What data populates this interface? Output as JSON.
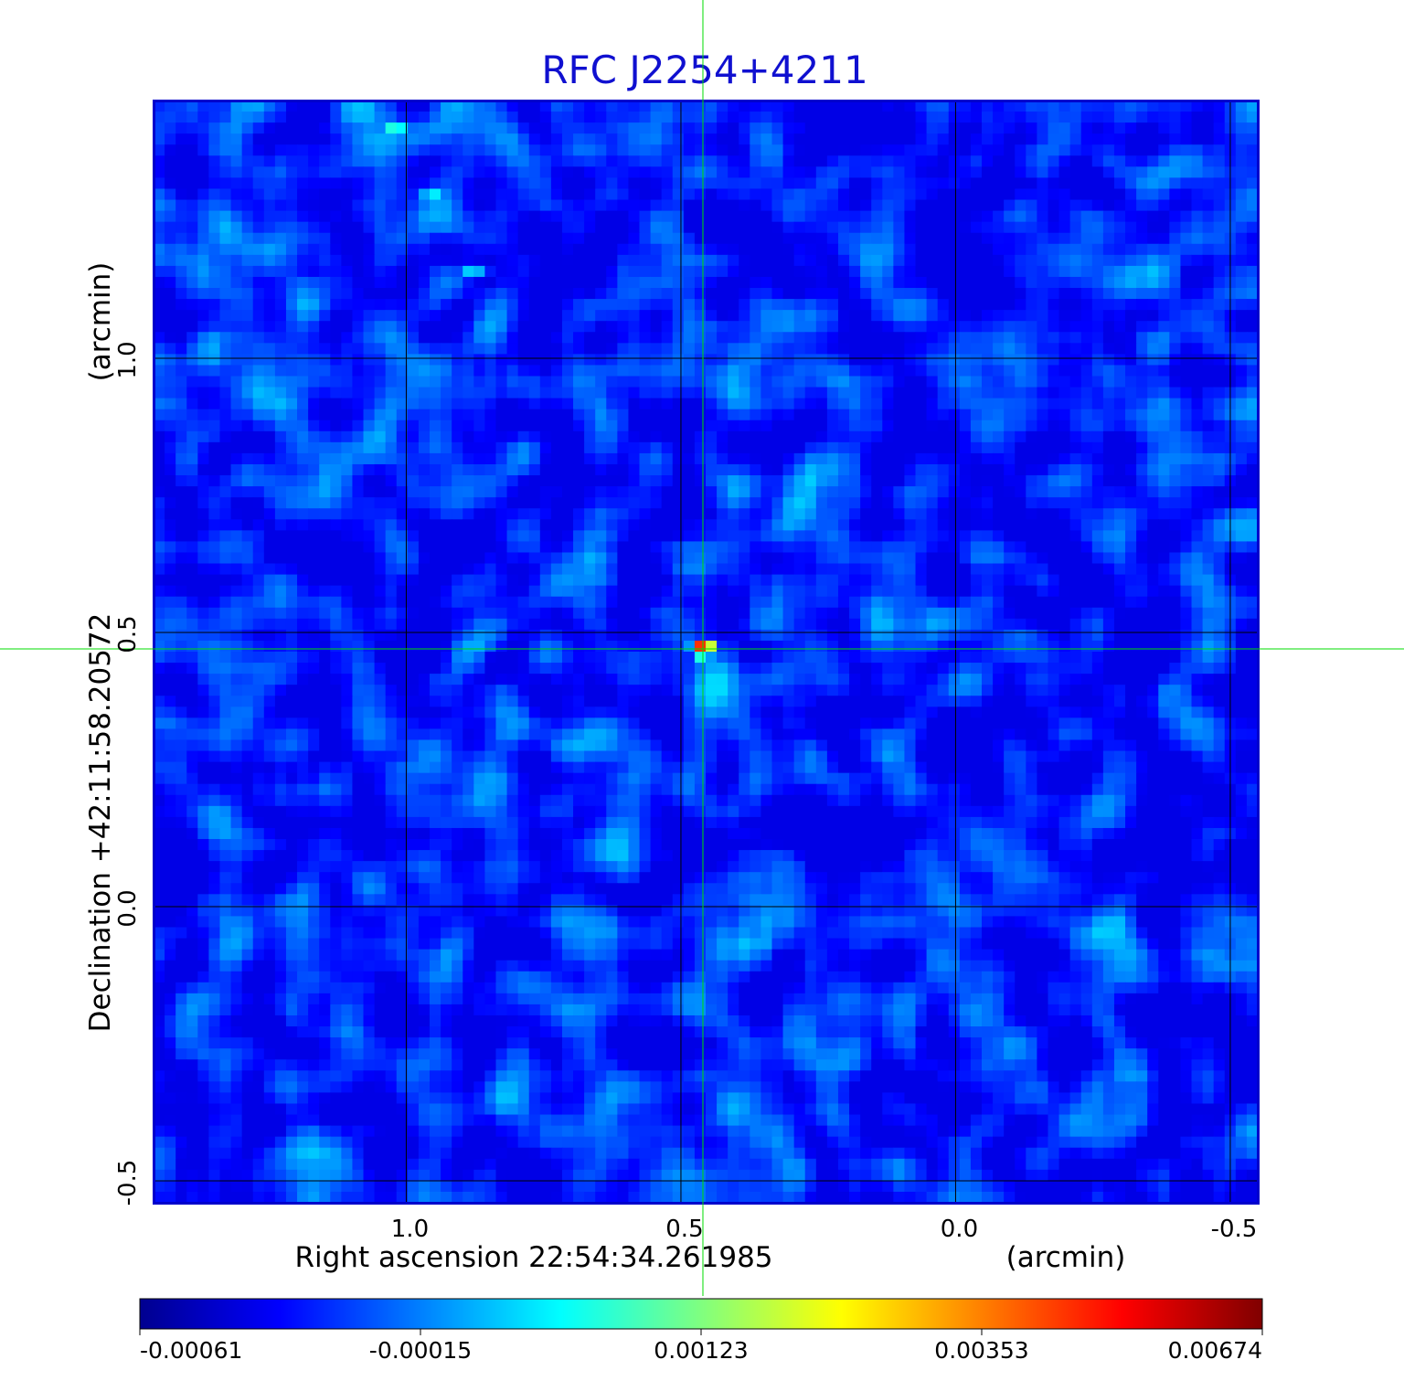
{
  "chart_data": {
    "type": "heatmap",
    "title": "RFC J2254+4211",
    "xlabel": "Right ascension  22:54:34.261985",
    "xunit": "(arcmin)",
    "ylabel": "Declination  +42:11:58.20572",
    "yunit": "(arcmin)",
    "x_ticks": [
      1.0,
      0.5,
      0.0,
      -0.5
    ],
    "x_tick_labels": [
      "1.0",
      "0.5",
      "0.0",
      "-0.5"
    ],
    "y_ticks": [
      -0.5,
      0.0,
      0.5,
      1.0
    ],
    "y_tick_labels": [
      "-0.5",
      "0.0",
      "0.5",
      "1.0"
    ],
    "xlim": [
      1.46,
      -0.55
    ],
    "ylim": [
      -0.54,
      1.47
    ],
    "grid": true,
    "crosshair": {
      "x": 0.46,
      "y": 0.47,
      "color": "#00dd00"
    },
    "peak": {
      "x": 0.46,
      "y": 0.47
    },
    "secondary_features": [
      {
        "x": 1.02,
        "y": 1.42,
        "level": 0.42
      },
      {
        "x": 0.95,
        "y": 1.3,
        "level": 0.36
      },
      {
        "x": 0.88,
        "y": 1.16,
        "level": 0.34
      }
    ],
    "colorbar": {
      "ticks": [
        -0.00061,
        -0.00015,
        0.00123,
        0.00353,
        0.00674
      ],
      "tick_labels": [
        "-0.00061",
        "-0.00015",
        "0.00123",
        "0.00353",
        "0.00674"
      ],
      "colormap": "jet"
    },
    "frame_color": "#0000cc"
  }
}
